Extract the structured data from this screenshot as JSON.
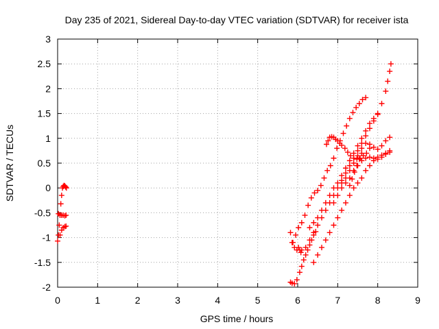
{
  "chart_data": {
    "type": "scatter",
    "title": "Day 235 of 2021, Sidereal Day-to-day VTEC variation (SDTVAR) for receiver ista",
    "xlabel": "GPS time / hours",
    "ylabel": "SDTVAR / TECUs",
    "xlim": [
      0,
      9
    ],
    "ylim": [
      -2,
      3
    ],
    "x_ticks": [
      "0",
      "1",
      "2",
      "3",
      "4",
      "5",
      "6",
      "7",
      "8",
      "9"
    ],
    "y_ticks": [
      "-2",
      "-1.5",
      "-1",
      "-0.5",
      "0",
      "0.5",
      "1",
      "1.5",
      "2",
      "2.5",
      "3"
    ],
    "grid": true,
    "marker": "plus",
    "colors": {
      "series": "#ff0000",
      "grid": "#a0a0a0",
      "axis": "#000000"
    },
    "series": [
      {
        "x": [
          0.0,
          0.02,
          0.04,
          0.06,
          0.08,
          0.1,
          0.12,
          0.14,
          0.16,
          0.18,
          0.2,
          0.22
        ],
        "y": [
          -1.07,
          -0.95,
          -0.75,
          -0.55,
          -0.32,
          -0.15,
          0.0,
          0.03,
          0.05,
          0.04,
          0.02,
          0.0
        ]
      },
      {
        "x": [
          0.02,
          0.06,
          0.1,
          0.14,
          0.18,
          0.21
        ],
        "y": [
          -0.52,
          -0.54,
          -0.55,
          -0.55,
          -0.56,
          -0.55
        ]
      },
      {
        "x": [
          0.06,
          0.1,
          0.14,
          0.18,
          0.21
        ],
        "y": [
          -0.95,
          -0.85,
          -0.8,
          -0.78,
          -0.77
        ]
      },
      {
        "x": [
          5.82,
          5.86,
          5.92,
          5.98,
          6.05,
          6.1,
          6.15,
          6.2,
          6.25,
          6.3,
          6.35,
          6.4,
          6.45
        ],
        "y": [
          -1.9,
          -1.92,
          -1.93,
          -1.85,
          -1.7,
          -1.58,
          -1.45,
          -1.35,
          -1.25,
          -1.15,
          -1.05,
          -0.95,
          -0.88
        ]
      },
      {
        "x": [
          5.82,
          5.86,
          5.92,
          5.98,
          6.02,
          6.05,
          6.08
        ],
        "y": [
          -0.9,
          -1.1,
          -1.2,
          -1.25,
          -1.2,
          -1.25,
          -1.3
        ]
      },
      {
        "x": [
          5.88,
          5.95,
          6.02,
          6.1,
          6.18,
          6.26,
          6.34,
          6.42,
          6.5,
          6.58,
          6.66,
          6.74,
          6.82,
          6.9,
          6.98,
          7.06,
          7.14,
          7.22,
          7.3,
          7.38,
          7.46,
          7.54,
          7.62,
          7.7
        ],
        "y": [
          -1.1,
          -0.95,
          -0.8,
          -0.7,
          -0.55,
          -0.35,
          -0.2,
          -0.1,
          -0.05,
          0.05,
          0.2,
          0.35,
          0.45,
          0.6,
          0.8,
          0.95,
          1.1,
          1.25,
          1.4,
          1.52,
          1.62,
          1.7,
          1.78,
          1.82
        ]
      },
      {
        "x": [
          6.1,
          6.2,
          6.3,
          6.4,
          6.5,
          6.6,
          6.7,
          6.8,
          6.9,
          7.0,
          7.1,
          7.2,
          7.3,
          7.4,
          7.5,
          7.6,
          7.7,
          7.8,
          7.9,
          8.0,
          8.1,
          8.2,
          8.25,
          8.3,
          8.33
        ],
        "y": [
          -1.25,
          -1.2,
          -1.05,
          -0.9,
          -0.75,
          -0.6,
          -0.45,
          -0.3,
          -0.15,
          0.0,
          0.15,
          0.3,
          0.45,
          0.6,
          0.75,
          0.9,
          1.05,
          1.2,
          1.35,
          1.5,
          1.7,
          1.95,
          2.15,
          2.35,
          2.5
        ]
      },
      {
        "x": [
          6.3,
          6.4,
          6.5,
          6.6,
          6.7,
          6.8,
          6.9,
          7.0,
          7.1,
          7.2,
          7.3,
          7.4,
          7.5,
          7.6,
          7.7,
          7.8,
          7.9,
          8.0
        ],
        "y": [
          -0.8,
          -0.7,
          -0.6,
          -0.45,
          -0.3,
          -0.15,
          0.0,
          0.1,
          0.25,
          0.4,
          0.55,
          0.7,
          0.85,
          1.0,
          1.15,
          1.3,
          1.4,
          1.48
        ]
      },
      {
        "x": [
          6.72,
          6.76,
          6.8,
          6.85,
          6.9,
          6.95,
          7.0,
          7.05,
          7.1,
          7.18,
          7.25,
          7.32,
          7.4,
          7.48,
          7.56,
          7.64,
          7.72,
          7.8
        ],
        "y": [
          0.88,
          0.95,
          1.02,
          1.03,
          1.02,
          0.98,
          0.95,
          0.9,
          0.86,
          0.8,
          0.72,
          0.65,
          0.6,
          0.58,
          0.6,
          0.65,
          0.7,
          0.8
        ]
      },
      {
        "x": [
          6.4,
          6.5,
          6.6,
          6.7,
          6.8,
          6.9,
          7.0,
          7.1,
          7.2,
          7.3,
          7.4,
          7.5,
          7.6,
          7.7,
          7.8,
          7.9,
          8.0,
          8.1,
          8.2,
          8.3
        ],
        "y": [
          -1.5,
          -1.35,
          -1.2,
          -1.05,
          -0.9,
          -0.75,
          -0.6,
          -0.45,
          -0.3,
          -0.15,
          0.0,
          0.1,
          0.2,
          0.35,
          0.45,
          0.55,
          0.62,
          0.66,
          0.7,
          0.75
        ]
      },
      {
        "x": [
          6.9,
          7.0,
          7.1,
          7.2,
          7.3,
          7.4,
          7.5,
          7.6,
          7.7,
          7.8,
          7.9,
          8.0,
          8.1,
          8.2,
          8.3
        ],
        "y": [
          -0.3,
          -0.15,
          0.0,
          0.1,
          0.2,
          0.35,
          0.45,
          0.55,
          0.6,
          0.62,
          0.6,
          0.58,
          0.62,
          0.68,
          0.72
        ]
      },
      {
        "x": [
          7.1,
          7.2,
          7.3,
          7.4,
          7.5,
          7.6,
          7.7,
          7.8,
          7.9,
          8.0,
          8.1,
          8.2,
          8.3
        ],
        "y": [
          0.1,
          0.2,
          0.35,
          0.5,
          0.65,
          0.8,
          0.9,
          0.88,
          0.82,
          0.78,
          0.85,
          0.95,
          1.02
        ]
      },
      {
        "x": [
          7.3,
          7.36,
          7.42,
          7.48,
          7.54,
          7.6
        ],
        "y": [
          0.05,
          0.18,
          0.32,
          0.45,
          0.58,
          0.7
        ]
      }
    ]
  }
}
